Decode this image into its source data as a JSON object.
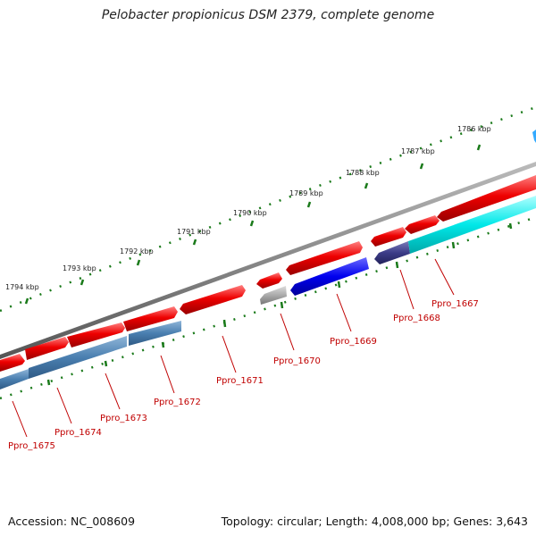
{
  "title": "Pelobacter propionicus DSM 2379, complete genome",
  "footer": {
    "accession": "Accession: NC_008609",
    "topology": "Topology: circular; Length: 4,008,000 bp; Genes: 3,643"
  },
  "colors": {
    "forward_gene": "#ee0000",
    "reverse_gene_steel": "#4a7fb0",
    "reverse_gene_blue": "#0000ee",
    "reverse_gene_gray": "#aaaaaa",
    "reverse_gene_navy": "#3c3c88",
    "reverse_gene_cyan": "#00e8e8",
    "backbone": "#888888",
    "tick": "#1a7a1a",
    "label": "#c00000"
  },
  "kbp_ticks": [
    "1786 kbp",
    "1787 kbp",
    "1788 kbp",
    "1789 kbp",
    "1790 kbp",
    "1791 kbp",
    "1792 kbp",
    "1793 kbp",
    "1794 kbp"
  ],
  "genes": [
    "Ppro_1667",
    "Ppro_1668",
    "Ppro_1669",
    "Ppro_1670",
    "Ppro_1671",
    "Ppro_1672",
    "Ppro_1673",
    "Ppro_1674",
    "Ppro_1675"
  ]
}
